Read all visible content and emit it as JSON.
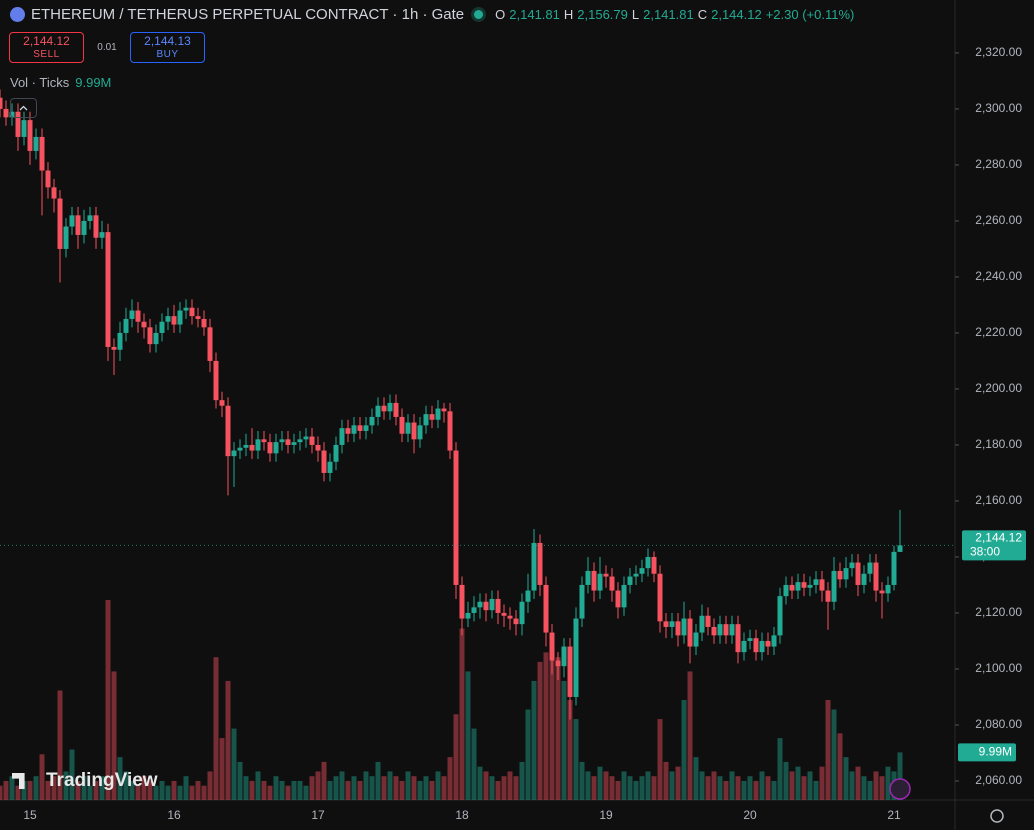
{
  "header": {
    "symbol": "ETHEREUM / TETHERUS PERPETUAL CONTRACT · 1h · Gate",
    "o_key": "O",
    "o": "2,141.81",
    "h_key": "H",
    "h": "2,156.79",
    "l_key": "L",
    "l": "2,141.81",
    "c_key": "C",
    "c": "2,144.12",
    "change": "+2.30 (+0.11%)"
  },
  "trade": {
    "sell_price": "2,144.12",
    "sell": "SELL",
    "spread": "0.01",
    "buy_price": "2,144.13",
    "buy": "BUY"
  },
  "volume_legend": {
    "name": "Vol · Ticks",
    "value": "9.99M"
  },
  "logo": "TradingView",
  "chart_data": {
    "type": "candlestick",
    "categories": [
      null,
      null,
      null,
      null,
      null,
      "15",
      null,
      null,
      null,
      null,
      null,
      null,
      null,
      null,
      null,
      null,
      null,
      null,
      null,
      null,
      null,
      null,
      null,
      null,
      null,
      null,
      null,
      null,
      null,
      "16",
      null,
      null,
      null,
      null,
      null,
      null,
      null,
      null,
      null,
      null,
      null,
      null,
      null,
      null,
      null,
      null,
      null,
      null,
      null,
      null,
      null,
      null,
      null,
      "17",
      null,
      null,
      null,
      null,
      null,
      null,
      null,
      null,
      null,
      null,
      null,
      null,
      null,
      null,
      null,
      null,
      null,
      null,
      null,
      null,
      null,
      null,
      null,
      "18",
      null,
      null,
      null,
      null,
      null,
      null,
      null,
      null,
      null,
      null,
      null,
      null,
      null,
      null,
      null,
      null,
      null,
      null,
      null,
      null,
      null,
      null,
      null,
      "19",
      null,
      null,
      null,
      null,
      null,
      null,
      null,
      null,
      null,
      null,
      null,
      null,
      null,
      null,
      null,
      null,
      null,
      null,
      null,
      null,
      null,
      null,
      null,
      "20",
      null,
      null,
      null,
      null,
      null,
      null,
      null,
      null,
      null,
      null,
      null,
      null,
      null,
      null,
      null,
      null,
      null,
      null,
      null,
      null,
      null,
      null,
      null,
      "21",
      null
    ],
    "open": [
      2304,
      2300,
      2297,
      2299,
      2290,
      2296,
      2285,
      2290,
      2278,
      2272,
      2268,
      2250,
      2258,
      2262,
      2255,
      2260,
      2262,
      2254,
      2256,
      2215,
      2214,
      2220,
      2225,
      2228,
      2224,
      2222,
      2216,
      2220,
      2224,
      2226,
      2223,
      2228,
      2229,
      2226,
      2225,
      2222,
      2210,
      2196,
      2194,
      2176,
      2178,
      2179,
      2180,
      2178,
      2182,
      2181,
      2177,
      2181,
      2182,
      2180,
      2181,
      2182,
      2183,
      2180,
      2178,
      2170,
      2174,
      2180,
      2186,
      2184,
      2187,
      2185,
      2187,
      2190,
      2194,
      2192,
      2195,
      2190,
      2184,
      2188,
      2182,
      2187,
      2191,
      2189,
      2193,
      2192,
      2178,
      2130,
      2118,
      2120,
      2122,
      2124,
      2121,
      2125,
      2120,
      2119,
      2118,
      2116,
      2124,
      2128,
      2145,
      2130,
      2113,
      2103,
      2101,
      2108,
      2090,
      2118,
      2130,
      2135,
      2128,
      2134,
      2133,
      2128,
      2122,
      2130,
      2133,
      2134,
      2136,
      2140,
      2134,
      2117,
      2115,
      2117,
      2112,
      2118,
      2108,
      2113,
      2119,
      2115,
      2112,
      2116,
      2112,
      2116,
      2106,
      2110,
      2111,
      2106,
      2110,
      2108,
      2112,
      2126,
      2130,
      2128,
      2131,
      2129,
      2130,
      2132,
      2128,
      2124,
      2135,
      2132,
      2136,
      2138,
      2130,
      2134,
      2138,
      2128,
      2127,
      2130,
      2141.81
    ],
    "high": [
      2307,
      2303,
      2302,
      2302,
      2299,
      2299,
      2293,
      2293,
      2281,
      2275,
      2271,
      2261,
      2265,
      2265,
      2264,
      2265,
      2265,
      2260,
      2259,
      2218,
      2224,
      2229,
      2232,
      2231,
      2227,
      2225,
      2223,
      2227,
      2229,
      2230,
      2231,
      2232,
      2232,
      2229,
      2228,
      2225,
      2213,
      2199,
      2197,
      2181,
      2182,
      2184,
      2186,
      2185,
      2185,
      2184,
      2184,
      2185,
      2185,
      2184,
      2185,
      2186,
      2186,
      2183,
      2181,
      2177,
      2183,
      2189,
      2189,
      2190,
      2190,
      2190,
      2193,
      2197,
      2197,
      2198,
      2198,
      2193,
      2191,
      2191,
      2190,
      2194,
      2194,
      2196,
      2195,
      2195,
      2181,
      2133,
      2124,
      2126,
      2127,
      2127,
      2128,
      2128,
      2123,
      2122,
      2121,
      2127,
      2134,
      2150,
      2148,
      2133,
      2116,
      2106,
      2111,
      2111,
      2122,
      2133,
      2140,
      2138,
      2140,
      2137,
      2136,
      2131,
      2133,
      2136,
      2137,
      2139,
      2143,
      2142,
      2137,
      2120,
      2120,
      2120,
      2124,
      2121,
      2116,
      2123,
      2122,
      2118,
      2119,
      2119,
      2119,
      2119,
      2113,
      2114,
      2114,
      2113,
      2113,
      2115,
      2129,
      2133,
      2133,
      2134,
      2134,
      2133,
      2135,
      2135,
      2131,
      2140,
      2138,
      2140,
      2141,
      2141,
      2137,
      2141,
      2141,
      2131,
      2133,
      2144,
      2156.79
    ],
    "low": [
      2297,
      2294,
      2294,
      2285,
      2287,
      2280,
      2282,
      2262,
      2268,
      2263,
      2238,
      2247,
      2255,
      2250,
      2252,
      2257,
      2250,
      2250,
      2210,
      2205,
      2210,
      2217,
      2222,
      2220,
      2218,
      2213,
      2213,
      2217,
      2221,
      2220,
      2220,
      2225,
      2223,
      2222,
      2219,
      2206,
      2193,
      2190,
      2162,
      2165,
      2175,
      2176,
      2175,
      2175,
      2178,
      2174,
      2174,
      2178,
      2177,
      2177,
      2178,
      2179,
      2177,
      2174,
      2167,
      2167,
      2171,
      2177,
      2181,
      2181,
      2182,
      2182,
      2184,
      2187,
      2189,
      2189,
      2187,
      2181,
      2181,
      2177,
      2179,
      2184,
      2186,
      2186,
      2188,
      2175,
      2125,
      2112,
      2115,
      2117,
      2118,
      2117,
      2118,
      2116,
      2115,
      2114,
      2112,
      2112,
      2120,
      2125,
      2126,
      2108,
      2098,
      2096,
      2097,
      2082,
      2087,
      2115,
      2127,
      2124,
      2125,
      2129,
      2124,
      2118,
      2119,
      2127,
      2130,
      2131,
      2133,
      2131,
      2113,
      2111,
      2111,
      2108,
      2109,
      2102,
      2105,
      2110,
      2112,
      2109,
      2109,
      2109,
      2109,
      2102,
      2103,
      2107,
      2103,
      2103,
      2105,
      2105,
      2109,
      2123,
      2125,
      2125,
      2126,
      2126,
      2127,
      2124,
      2114,
      2121,
      2129,
      2129,
      2133,
      2126,
      2127,
      2131,
      2124,
      2118,
      2124,
      2128,
      2141.81
    ],
    "close": [
      2300,
      2297,
      2299,
      2290,
      2296,
      2285,
      2290,
      2278,
      2272,
      2268,
      2250,
      2258,
      2262,
      2255,
      2260,
      2262,
      2254,
      2256,
      2215,
      2214,
      2220,
      2225,
      2228,
      2224,
      2222,
      2216,
      2220,
      2224,
      2226,
      2223,
      2228,
      2229,
      2226,
      2225,
      2222,
      2210,
      2196,
      2194,
      2176,
      2178,
      2179,
      2180,
      2178,
      2182,
      2181,
      2177,
      2181,
      2182,
      2180,
      2181,
      2182,
      2183,
      2180,
      2178,
      2170,
      2174,
      2180,
      2186,
      2184,
      2187,
      2185,
      2187,
      2190,
      2194,
      2192,
      2195,
      2190,
      2184,
      2188,
      2182,
      2187,
      2191,
      2189,
      2193,
      2192,
      2178,
      2130,
      2118,
      2120,
      2122,
      2124,
      2121,
      2125,
      2120,
      2119,
      2118,
      2116,
      2124,
      2128,
      2145,
      2130,
      2113,
      2103,
      2101,
      2108,
      2090,
      2118,
      2130,
      2135,
      2128,
      2134,
      2133,
      2128,
      2122,
      2130,
      2133,
      2134,
      2136,
      2140,
      2134,
      2117,
      2115,
      2117,
      2112,
      2118,
      2108,
      2113,
      2119,
      2115,
      2112,
      2116,
      2112,
      2116,
      2106,
      2110,
      2111,
      2106,
      2110,
      2108,
      2112,
      2126,
      2130,
      2128,
      2131,
      2129,
      2130,
      2132,
      2128,
      2124,
      2135,
      2132,
      2136,
      2138,
      2130,
      2134,
      2138,
      2128,
      2127,
      2130,
      2141.81,
      2144.12
    ],
    "volume": [
      3,
      4,
      5,
      3,
      4,
      4,
      5,
      9.6,
      4,
      5,
      23,
      6,
      10.6,
      4,
      5,
      3,
      4,
      5,
      42,
      27,
      9,
      6,
      4,
      3,
      5,
      4,
      3,
      4,
      3,
      4,
      3,
      5,
      3,
      4,
      3,
      6,
      30,
      13,
      25,
      15,
      8,
      5,
      4,
      6,
      4,
      3,
      5,
      4,
      3,
      4,
      4,
      3,
      5,
      6,
      8,
      4,
      5,
      6,
      4,
      5,
      4,
      6,
      5,
      8,
      5,
      6,
      5,
      4,
      6,
      5,
      4,
      5,
      4,
      6,
      5,
      9,
      18,
      36,
      27,
      15,
      7,
      6,
      5,
      4,
      5,
      6,
      5,
      8,
      19,
      25,
      29,
      31,
      33,
      30,
      25,
      21,
      17,
      8,
      6,
      5,
      7,
      6,
      5,
      4,
      6,
      5,
      4,
      5,
      6,
      5,
      17,
      8,
      6,
      7,
      21,
      27,
      9,
      6,
      5,
      6,
      5,
      4,
      6,
      5,
      4,
      5,
      4,
      6,
      5,
      4,
      13,
      8,
      6,
      7,
      5,
      6,
      4,
      7,
      21,
      19,
      14,
      9,
      6,
      7,
      5,
      4,
      6,
      5,
      7,
      6,
      9.99
    ],
    "up_color": "#22ab94",
    "down_color": "#f7525f",
    "ylim": [
      2053.2,
      2338.9
    ],
    "yticks": [
      {
        "value": 2060,
        "label": "2,060.00"
      },
      {
        "value": 2080,
        "label": "2,080.00"
      },
      {
        "value": 2100,
        "label": "2,100.00"
      },
      {
        "value": 2120,
        "label": "2,120.00"
      },
      {
        "value": 2140,
        "label": "2,140.00"
      },
      {
        "value": 2160,
        "label": "2,160.00"
      },
      {
        "value": 2180,
        "label": "2,180.00"
      },
      {
        "value": 2200,
        "label": "2,200.00"
      },
      {
        "value": 2220,
        "label": "2,220.00"
      },
      {
        "value": 2240,
        "label": "2,240.00"
      },
      {
        "value": 2260,
        "label": "2,260.00"
      },
      {
        "value": 2280,
        "label": "2,280.00"
      },
      {
        "value": 2300,
        "label": "2,300.00"
      },
      {
        "value": 2320,
        "label": "2,320.00"
      }
    ],
    "last_price": {
      "value": 2144.12,
      "label": "2,144.12"
    },
    "countdown": "38:00",
    "volume_label": "9.99M"
  }
}
